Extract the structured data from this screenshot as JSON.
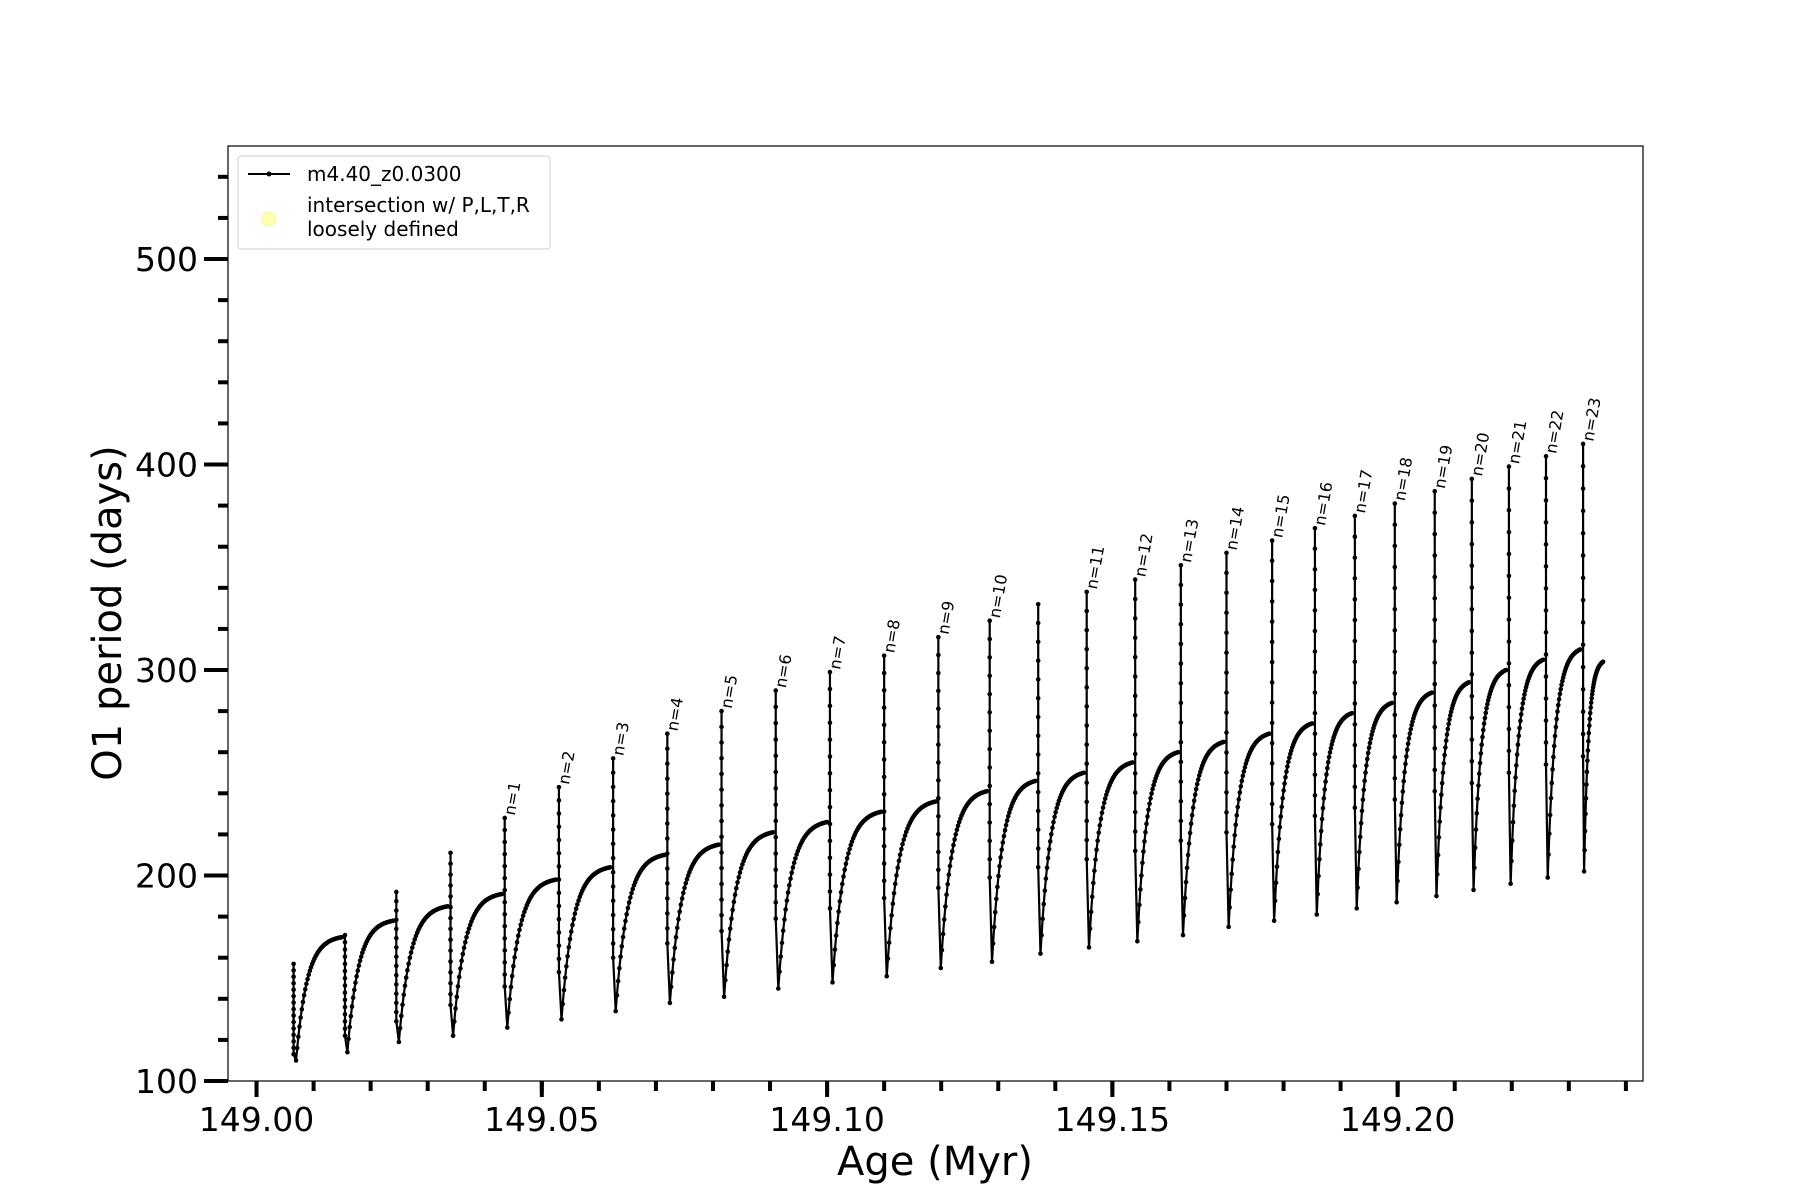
{
  "chart_data": {
    "type": "line",
    "title": "",
    "xlabel": "Age (Myr)",
    "ylabel": "O1 period (days)",
    "xlim": [
      148.995,
      149.243
    ],
    "ylim": [
      100,
      555
    ],
    "x_ticks_major": [
      149.0,
      149.05,
      149.1,
      149.15,
      149.2
    ],
    "x_tick_labels": [
      "149.00",
      "149.05",
      "149.10",
      "149.15",
      "149.20"
    ],
    "x_minor_step": 0.01,
    "y_ticks_major": [
      100,
      200,
      300,
      400,
      500
    ],
    "y_tick_labels": [
      "100",
      "200",
      "300",
      "400",
      "500"
    ],
    "y_minor_step": 20,
    "grid": false,
    "legend": {
      "placement": "top-left",
      "entries": [
        {
          "label": "m4.40_z0.0300",
          "marker": "line-dot",
          "color": "#000000"
        },
        {
          "label": "intersection w/ P,L,T,R",
          "label2": "loosely defined",
          "marker": "circle",
          "color": "#ffffb0"
        }
      ]
    },
    "series": [
      {
        "name": "m4.40_z0.0300",
        "color": "#000000",
        "pulses": [
          {
            "x_start": 149.0065,
            "x_end": 149.015,
            "top": 157,
            "start": 113,
            "min": 110,
            "plateau": 170
          },
          {
            "x_start": 149.0155,
            "x_end": 149.024,
            "top": 171,
            "start": 122,
            "min": 114,
            "plateau": 178
          },
          {
            "x_start": 149.0245,
            "x_end": 149.0335,
            "top": 192,
            "start": 129,
            "min": 119,
            "plateau": 185
          },
          {
            "x_start": 149.034,
            "x_end": 149.043,
            "top": 211,
            "start": 137,
            "min": 122,
            "plateau": 191
          },
          {
            "x_start": 149.0435,
            "x_end": 149.0525,
            "top": 228,
            "start": 146,
            "min": 126,
            "plateau": 198
          },
          {
            "x_start": 149.053,
            "x_end": 149.062,
            "top": 243,
            "start": 153,
            "min": 130,
            "plateau": 204
          },
          {
            "x_start": 149.0625,
            "x_end": 149.0715,
            "top": 257,
            "start": 160,
            "min": 134,
            "plateau": 210
          },
          {
            "x_start": 149.072,
            "x_end": 149.081,
            "top": 269,
            "start": 167,
            "min": 138,
            "plateau": 215
          },
          {
            "x_start": 149.0815,
            "x_end": 149.0905,
            "top": 280,
            "start": 173,
            "min": 141,
            "plateau": 221
          },
          {
            "x_start": 149.091,
            "x_end": 149.1,
            "top": 290,
            "start": 179,
            "min": 145,
            "plateau": 226
          },
          {
            "x_start": 149.1005,
            "x_end": 149.1095,
            "top": 299,
            "start": 184,
            "min": 148,
            "plateau": 231
          },
          {
            "x_start": 149.11,
            "x_end": 149.119,
            "top": 307,
            "start": 189,
            "min": 151,
            "plateau": 236
          },
          {
            "x_start": 149.1195,
            "x_end": 149.128,
            "top": 316,
            "start": 194,
            "min": 155,
            "plateau": 241
          },
          {
            "x_start": 149.1285,
            "x_end": 149.1365,
            "top": 324,
            "start": 199,
            "min": 158,
            "plateau": 246
          },
          {
            "x_start": 149.137,
            "x_end": 149.145,
            "top": 332,
            "start": 204,
            "min": 162,
            "plateau": 250
          },
          {
            "x_start": 149.1455,
            "x_end": 149.1535,
            "top": 338,
            "start": 208,
            "min": 165,
            "plateau": 255
          },
          {
            "x_start": 149.154,
            "x_end": 149.1615,
            "top": 344,
            "start": 212,
            "min": 168,
            "plateau": 260
          },
          {
            "x_start": 149.162,
            "x_end": 149.1695,
            "top": 351,
            "start": 217,
            "min": 171,
            "plateau": 265
          },
          {
            "x_start": 149.17,
            "x_end": 149.1775,
            "top": 357,
            "start": 221,
            "min": 175,
            "plateau": 269
          },
          {
            "x_start": 149.178,
            "x_end": 149.185,
            "top": 363,
            "start": 225,
            "min": 178,
            "plateau": 274
          },
          {
            "x_start": 149.1855,
            "x_end": 149.192,
            "top": 369,
            "start": 229,
            "min": 181,
            "plateau": 279
          },
          {
            "x_start": 149.1925,
            "x_end": 149.199,
            "top": 375,
            "start": 233,
            "min": 184,
            "plateau": 284
          },
          {
            "x_start": 149.1995,
            "x_end": 149.206,
            "top": 381,
            "start": 237,
            "min": 187,
            "plateau": 289
          },
          {
            "x_start": 149.2065,
            "x_end": 149.2125,
            "top": 387,
            "start": 241,
            "min": 190,
            "plateau": 294
          },
          {
            "x_start": 149.213,
            "x_end": 149.219,
            "top": 393,
            "start": 245,
            "min": 193,
            "plateau": 300
          },
          {
            "x_start": 149.2195,
            "x_end": 149.2255,
            "top": 399,
            "start": 250,
            "min": 196,
            "plateau": 305
          },
          {
            "x_start": 149.226,
            "x_end": 149.232,
            "top": 404,
            "start": 254,
            "min": 199,
            "plateau": 310
          },
          {
            "x_start": 149.2325,
            "x_end": 149.236,
            "top": 410,
            "start": 258,
            "min": 202,
            "plateau": 304
          }
        ]
      }
    ],
    "annotations": [
      {
        "text": "n=1",
        "x": 149.0435,
        "y": 228
      },
      {
        "text": "n=2",
        "x": 149.053,
        "y": 243
      },
      {
        "text": "n=3",
        "x": 149.0625,
        "y": 257
      },
      {
        "text": "n=4",
        "x": 149.072,
        "y": 269
      },
      {
        "text": "n=5",
        "x": 149.0815,
        "y": 280
      },
      {
        "text": "n=6",
        "x": 149.091,
        "y": 290
      },
      {
        "text": "n=7",
        "x": 149.1005,
        "y": 299
      },
      {
        "text": "n=8",
        "x": 149.11,
        "y": 307
      },
      {
        "text": "n=9",
        "x": 149.1195,
        "y": 316
      },
      {
        "text": "n=10",
        "x": 149.1285,
        "y": 324
      },
      {
        "text": "n=11",
        "x": 149.1455,
        "y": 338
      },
      {
        "text": "n=12",
        "x": 149.154,
        "y": 344
      },
      {
        "text": "n=13",
        "x": 149.162,
        "y": 351
      },
      {
        "text": "n=14",
        "x": 149.17,
        "y": 357
      },
      {
        "text": "n=15",
        "x": 149.178,
        "y": 363
      },
      {
        "text": "n=16",
        "x": 149.1855,
        "y": 369
      },
      {
        "text": "n=17",
        "x": 149.1925,
        "y": 375
      },
      {
        "text": "n=18",
        "x": 149.1995,
        "y": 381
      },
      {
        "text": "n=19",
        "x": 149.2065,
        "y": 387
      },
      {
        "text": "n=20",
        "x": 149.213,
        "y": 393
      },
      {
        "text": "n=21",
        "x": 149.2195,
        "y": 399
      },
      {
        "text": "n=22",
        "x": 149.226,
        "y": 404
      },
      {
        "text": "n=23",
        "x": 149.2325,
        "y": 410
      }
    ]
  }
}
